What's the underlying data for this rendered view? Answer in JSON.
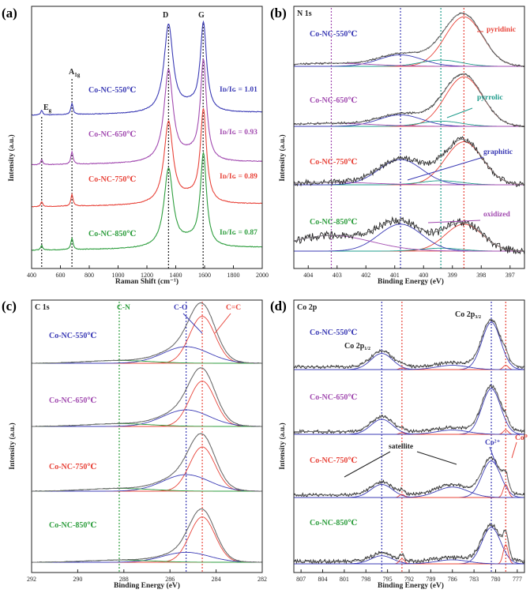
{
  "chart_data": [
    {
      "panel_label": "(a)",
      "type": "line",
      "xlabel": "Raman Shift (cm⁻¹)",
      "ylabel": "Intensity (a.u.)",
      "xlim": [
        400,
        2000
      ],
      "x_ticks": [
        "400",
        "600",
        "800",
        "1000",
        "1200",
        "1400",
        "1600",
        "1800",
        "2000"
      ],
      "peak_labels": [
        "E",
        "A",
        "D",
        "G"
      ],
      "peak_subs": [
        "g",
        "1g"
      ],
      "peaks_x": [
        470,
        680,
        1350,
        1590
      ],
      "series": [
        {
          "name": "Co-NC-550℃",
          "color": "#3b3bb5",
          "ratio": "Iᴅ/Iɢ = 1.01",
          "d_height": 0.95,
          "g_height": 0.94
        },
        {
          "name": "Co-NC-650℃",
          "color": "#a24bb0",
          "ratio": "Iᴅ/Iɢ = 0.93",
          "d_height": 0.9,
          "g_height": 0.97
        },
        {
          "name": "Co-NC-750℃",
          "color": "#e8443a",
          "ratio": "Iᴅ/Iɢ = 0.89",
          "d_height": 0.86,
          "g_height": 0.96
        },
        {
          "name": "Co-NC-850℃",
          "color": "#2e9e3e",
          "ratio": "Iᴅ/Iɢ = 0.87",
          "d_height": 0.84,
          "g_height": 0.97
        }
      ]
    },
    {
      "panel_label": "(b)",
      "type": "line",
      "element": "N 1s",
      "xlabel": "Binding Energy (eV)",
      "ylabel": "Intensity (a.u.)",
      "xlim": [
        404.5,
        396.5
      ],
      "x_ticks": [
        "404",
        "403",
        "402",
        "401",
        "400",
        "399",
        "398",
        "397"
      ],
      "ref_lines": [
        403.2,
        400.8,
        399.4,
        398.6
      ],
      "components": {
        "pyridinic": 398.6,
        "pyrrolic": 399.4,
        "graphitic": 400.8,
        "oxidized": 403.2
      },
      "annotations": [
        "pyridinic",
        "pyrrolic",
        "graphitic",
        "oxidized"
      ],
      "series": [
        "Co-NC-550℃",
        "Co-NC-650℃",
        "Co-NC-750℃",
        "Co-NC-850℃"
      ]
    },
    {
      "panel_label": "(c)",
      "type": "line",
      "element": "C 1s",
      "xlabel": "Binding Energy (eV)",
      "ylabel": "Intensity (a.u.)",
      "xlim": [
        292,
        282
      ],
      "x_ticks": [
        "292",
        "290",
        "288",
        "286",
        "284",
        "282"
      ],
      "ref_lines": [
        288.2,
        285.3,
        284.6
      ],
      "annotations": [
        "C-N",
        "C-O",
        "C=C"
      ],
      "series": [
        "Co-NC-550℃",
        "Co-NC-650℃",
        "Co-NC-750℃",
        "Co-NC-850℃"
      ]
    },
    {
      "panel_label": "(d)",
      "type": "line",
      "element": "Co 2p",
      "xlabel": "Binding Energy (eV)",
      "ylabel": "Intensity (a.u.)",
      "xlim": [
        808,
        776
      ],
      "x_ticks": [
        "807",
        "804",
        "801",
        "798",
        "795",
        "792",
        "789",
        "786",
        "783",
        "780",
        "777"
      ],
      "ref_lines": [
        795.8,
        793.0,
        780.6,
        778.6
      ],
      "peak_labels": [
        "Co 2p",
        "Co 2p"
      ],
      "peak_subs": [
        "1/2",
        "3/2"
      ],
      "annotations": [
        "satellite",
        "Co²⁺",
        "Co⁰"
      ],
      "series": [
        "Co-NC-550℃",
        "Co-NC-650℃",
        "Co-NC-750℃",
        "Co-NC-850℃"
      ]
    }
  ],
  "colors": {
    "blue": "#3b3bb5",
    "purple": "#a24bb0",
    "red": "#e8443a",
    "green": "#2e9e3e",
    "teal": "#1f9c8c",
    "black": "#222222"
  }
}
